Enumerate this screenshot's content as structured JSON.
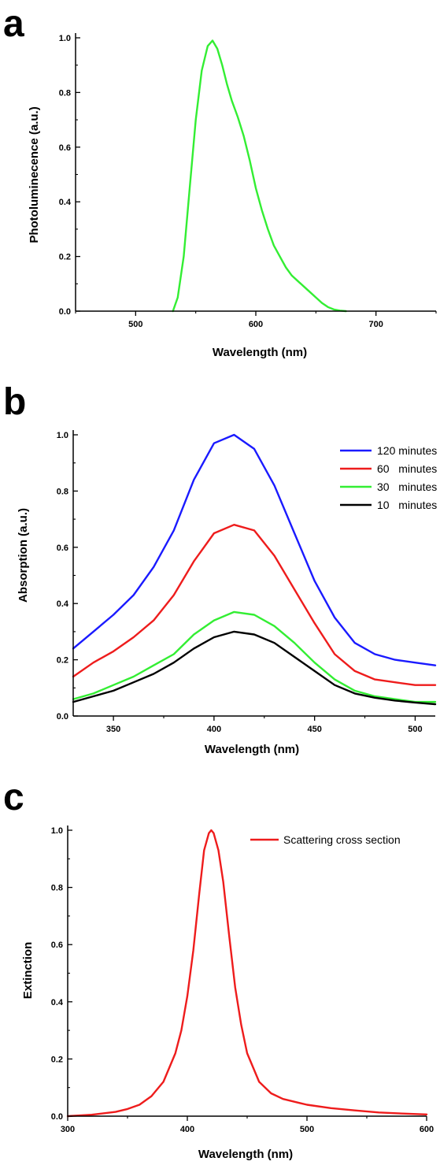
{
  "panels": [
    "a",
    "b",
    "c"
  ],
  "chart_data": [
    {
      "panel": "a",
      "type": "line",
      "xlabel": "Wavelength (nm)",
      "ylabel": "Photoluminecence (a.u.)",
      "xlim": [
        450,
        750
      ],
      "ylim": [
        0,
        1.0
      ],
      "xticks": [
        500,
        600,
        700
      ],
      "yticks": [
        0.0,
        0.2,
        0.4,
        0.6,
        0.8,
        1.0
      ],
      "grid": false,
      "series": [
        {
          "color": "#33ee33",
          "x": [
            531,
            535,
            540,
            545,
            550,
            555,
            560,
            564,
            568,
            572,
            576,
            580,
            585,
            590,
            595,
            600,
            605,
            610,
            615,
            620,
            625,
            630,
            635,
            640,
            645,
            650,
            655,
            660,
            665,
            670,
            675
          ],
          "y": [
            0.0,
            0.05,
            0.2,
            0.45,
            0.7,
            0.88,
            0.97,
            0.99,
            0.96,
            0.9,
            0.83,
            0.77,
            0.71,
            0.64,
            0.55,
            0.45,
            0.37,
            0.3,
            0.24,
            0.2,
            0.16,
            0.13,
            0.11,
            0.09,
            0.07,
            0.05,
            0.03,
            0.015,
            0.006,
            0.002,
            0.0
          ]
        }
      ]
    },
    {
      "panel": "b",
      "type": "line",
      "xlabel": "Wavelength (nm)",
      "ylabel": "Absorption (a.u.)",
      "xlim": [
        330,
        510
      ],
      "ylim": [
        0,
        1.0
      ],
      "xticks": [
        350,
        400,
        450,
        500
      ],
      "yticks": [
        0.0,
        0.2,
        0.4,
        0.6,
        0.8,
        1.0
      ],
      "grid": false,
      "legend": "top-right",
      "x": [
        330,
        340,
        350,
        360,
        370,
        380,
        390,
        400,
        410,
        420,
        430,
        440,
        450,
        460,
        470,
        480,
        490,
        500,
        510
      ],
      "series": [
        {
          "name": "120 minutes",
          "color": "#1a1aff",
          "values": [
            0.24,
            0.3,
            0.36,
            0.43,
            0.53,
            0.66,
            0.84,
            0.97,
            1.0,
            0.95,
            0.82,
            0.65,
            0.48,
            0.35,
            0.26,
            0.22,
            0.2,
            0.19,
            0.18
          ]
        },
        {
          "name": "60   minutes",
          "color": "#ee1c1c",
          "values": [
            0.14,
            0.19,
            0.23,
            0.28,
            0.34,
            0.43,
            0.55,
            0.65,
            0.68,
            0.66,
            0.57,
            0.45,
            0.33,
            0.22,
            0.16,
            0.13,
            0.12,
            0.11,
            0.11
          ]
        },
        {
          "name": "30   minutes",
          "color": "#33ee33",
          "values": [
            0.06,
            0.08,
            0.11,
            0.14,
            0.18,
            0.22,
            0.29,
            0.34,
            0.37,
            0.36,
            0.32,
            0.26,
            0.19,
            0.13,
            0.09,
            0.07,
            0.06,
            0.05,
            0.05
          ]
        },
        {
          "name": "10   minutes",
          "color": "#000000",
          "values": [
            0.05,
            0.07,
            0.09,
            0.12,
            0.15,
            0.19,
            0.24,
            0.28,
            0.3,
            0.29,
            0.26,
            0.21,
            0.16,
            0.11,
            0.08,
            0.065,
            0.055,
            0.048,
            0.042
          ]
        }
      ]
    },
    {
      "panel": "c",
      "type": "line",
      "xlabel": "Wavelength (nm)",
      "ylabel": "Extinction",
      "xlim": [
        300,
        600
      ],
      "ylim": [
        0,
        1.0
      ],
      "xticks": [
        300,
        400,
        500,
        600
      ],
      "yticks": [
        0.0,
        0.2,
        0.4,
        0.6,
        0.8,
        1.0
      ],
      "grid": false,
      "legend": "top-right",
      "series": [
        {
          "name": "Scattering cross section",
          "color": "#ee1c1c",
          "x": [
            300,
            320,
            340,
            350,
            360,
            370,
            380,
            390,
            395,
            400,
            405,
            410,
            414,
            418,
            420,
            422,
            426,
            430,
            435,
            440,
            445,
            450,
            460,
            470,
            480,
            500,
            520,
            540,
            560,
            580,
            600
          ],
          "y": [
            0.0,
            0.005,
            0.015,
            0.025,
            0.04,
            0.07,
            0.12,
            0.22,
            0.3,
            0.42,
            0.58,
            0.78,
            0.93,
            0.99,
            1.0,
            0.99,
            0.93,
            0.82,
            0.63,
            0.45,
            0.32,
            0.22,
            0.12,
            0.08,
            0.06,
            0.04,
            0.028,
            0.02,
            0.013,
            0.009,
            0.006
          ]
        }
      ]
    }
  ]
}
